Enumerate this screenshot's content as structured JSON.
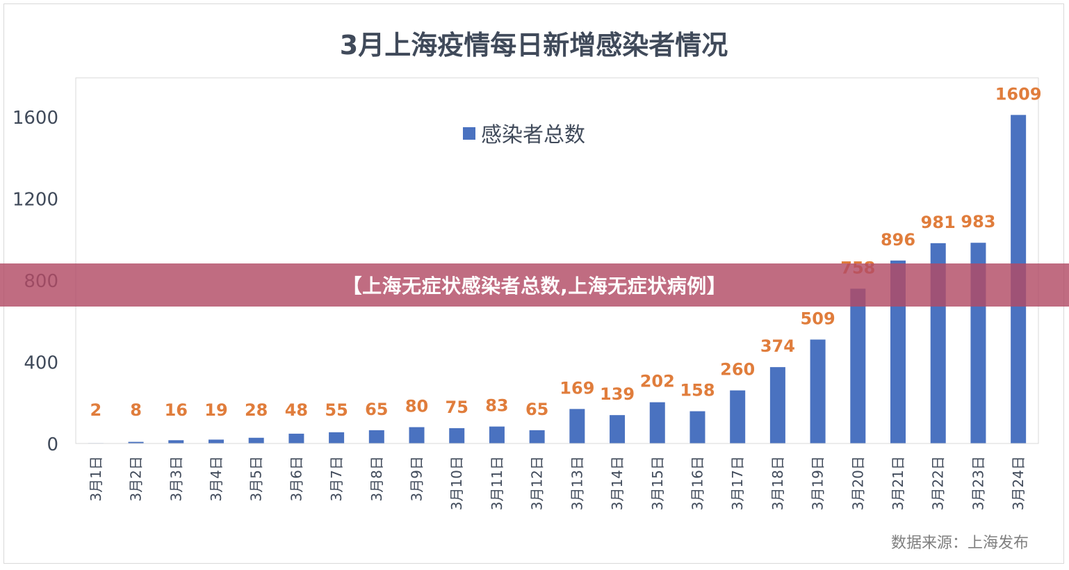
{
  "chart_data": {
    "type": "bar",
    "title": "3月上海疫情每日新增感染者情况",
    "legend": {
      "label": "感染者总数",
      "placement": "top-center"
    },
    "categories": [
      "3月1日",
      "3月2日",
      "3月3日",
      "3月4日",
      "3月5日",
      "3月6日",
      "3月7日",
      "3月8日",
      "3月9日",
      "3月10日",
      "3月11日",
      "3月12日",
      "3月13日",
      "3月14日",
      "3月15日",
      "3月16日",
      "3月17日",
      "3月18日",
      "3月19日",
      "3月20日",
      "3月21日",
      "3月22日",
      "3月23日",
      "3月24日"
    ],
    "series": [
      {
        "name": "感染者总数",
        "values": [
          2,
          8,
          16,
          19,
          28,
          48,
          55,
          65,
          80,
          75,
          83,
          65,
          169,
          139,
          202,
          158,
          260,
          374,
          509,
          758,
          896,
          981,
          983,
          1609
        ]
      }
    ],
    "ylim": [
      0,
      1600
    ],
    "yticks": [
      0,
      400,
      800,
      1200,
      1600
    ],
    "grid": false,
    "colors": {
      "bar": "#4a72c0",
      "label": "#e07d3c",
      "axis_text": "#404a5a",
      "title": "#404a5a"
    }
  },
  "source_note": "数据来源：上海发布",
  "banner_text": "【上海无症状感染者总数,上海无症状病例】"
}
